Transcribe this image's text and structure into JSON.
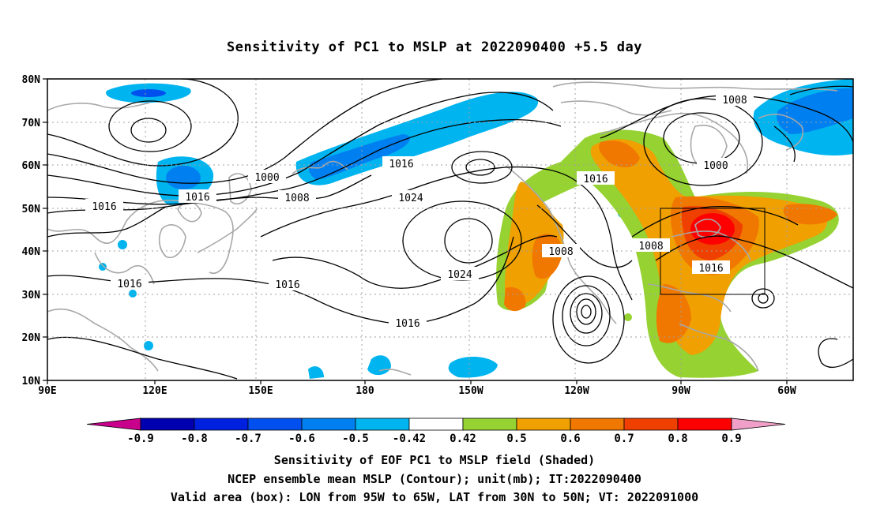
{
  "title": "Sensitivity of PC1 to MSLP at 2022090400 +5.5 day",
  "lat_labels": [
    "80N",
    "70N",
    "60N",
    "50N",
    "40N",
    "30N",
    "20N",
    "10N"
  ],
  "lon_labels": [
    "90E",
    "120E",
    "150E",
    "180",
    "150W",
    "120W",
    "90W",
    "60W"
  ],
  "contour_labels": [
    "1008",
    "1000",
    "1016",
    "1000",
    "1008",
    "1016",
    "1016",
    "1024",
    "1016",
    "1008",
    "1008",
    "1016",
    "1016",
    "1024",
    "1016",
    "1016"
  ],
  "colorbar": {
    "ticks": [
      "-0.9",
      "-0.8",
      "-0.7",
      "-0.6",
      "-0.5",
      "-0.42",
      "0.42",
      "0.5",
      "0.6",
      "0.7",
      "0.8",
      "0.9"
    ],
    "colors": [
      "#0000b0",
      "#0020e0",
      "#0050f0",
      "#0080f0",
      "#00b4f0",
      "#ffffff",
      "#96d232",
      "#f0a000",
      "#f07800",
      "#f04000",
      "#ff0000"
    ],
    "low_end_color": "#c8008c",
    "high_end_color": "#f0a0c8"
  },
  "captions": [
    "Sensitivity of EOF PC1 to MSLP field (Shaded)",
    "NCEP ensemble mean MSLP (Contour); unit(mb); IT:2022090400",
    "Valid area (box): LON from 95W to 65W, LAT from 30N to 50N; VT: 2022091000"
  ],
  "valid_box": {
    "lon": [
      "95W",
      "65W"
    ],
    "lat": [
      "30N",
      "50N"
    ]
  }
}
